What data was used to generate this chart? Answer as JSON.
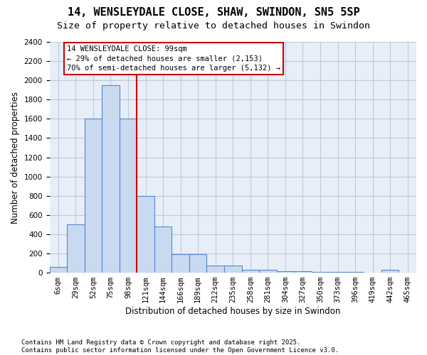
{
  "title": "14, WENSLEYDALE CLOSE, SHAW, SWINDON, SN5 5SP",
  "subtitle": "Size of property relative to detached houses in Swindon",
  "xlabel": "Distribution of detached houses by size in Swindon",
  "ylabel": "Number of detached properties",
  "footnote": "Contains HM Land Registry data © Crown copyright and database right 2025.\nContains public sector information licensed under the Open Government Licence v3.0.",
  "bin_labels": [
    "6sqm",
    "29sqm",
    "52sqm",
    "75sqm",
    "98sqm",
    "121sqm",
    "144sqm",
    "166sqm",
    "189sqm",
    "212sqm",
    "235sqm",
    "258sqm",
    "281sqm",
    "304sqm",
    "327sqm",
    "350sqm",
    "373sqm",
    "396sqm",
    "419sqm",
    "442sqm",
    "465sqm"
  ],
  "bar_values": [
    60,
    500,
    1600,
    1950,
    1600,
    800,
    480,
    195,
    195,
    75,
    75,
    30,
    30,
    15,
    15,
    10,
    10,
    5,
    0,
    30,
    0
  ],
  "bar_color": "#c8d9f0",
  "bar_edge_color": "#5588cc",
  "marker_bin_index": 4,
  "marker_line_color": "#cc0000",
  "annotation_text": "14 WENSLEYDALE CLOSE: 99sqm\n← 29% of detached houses are smaller (2,153)\n70% of semi-detached houses are larger (5,132) →",
  "annotation_box_color": "#cc0000",
  "ylim": [
    0,
    2400
  ],
  "yticks": [
    0,
    200,
    400,
    600,
    800,
    1000,
    1200,
    1400,
    1600,
    1800,
    2000,
    2200,
    2400
  ],
  "grid_color": "#c0c8d8",
  "bg_color": "#e8eef8",
  "title_fontsize": 11,
  "subtitle_fontsize": 9.5,
  "axis_label_fontsize": 8.5,
  "tick_fontsize": 7.5,
  "annotation_fontsize": 7.5,
  "footnote_fontsize": 6.5
}
